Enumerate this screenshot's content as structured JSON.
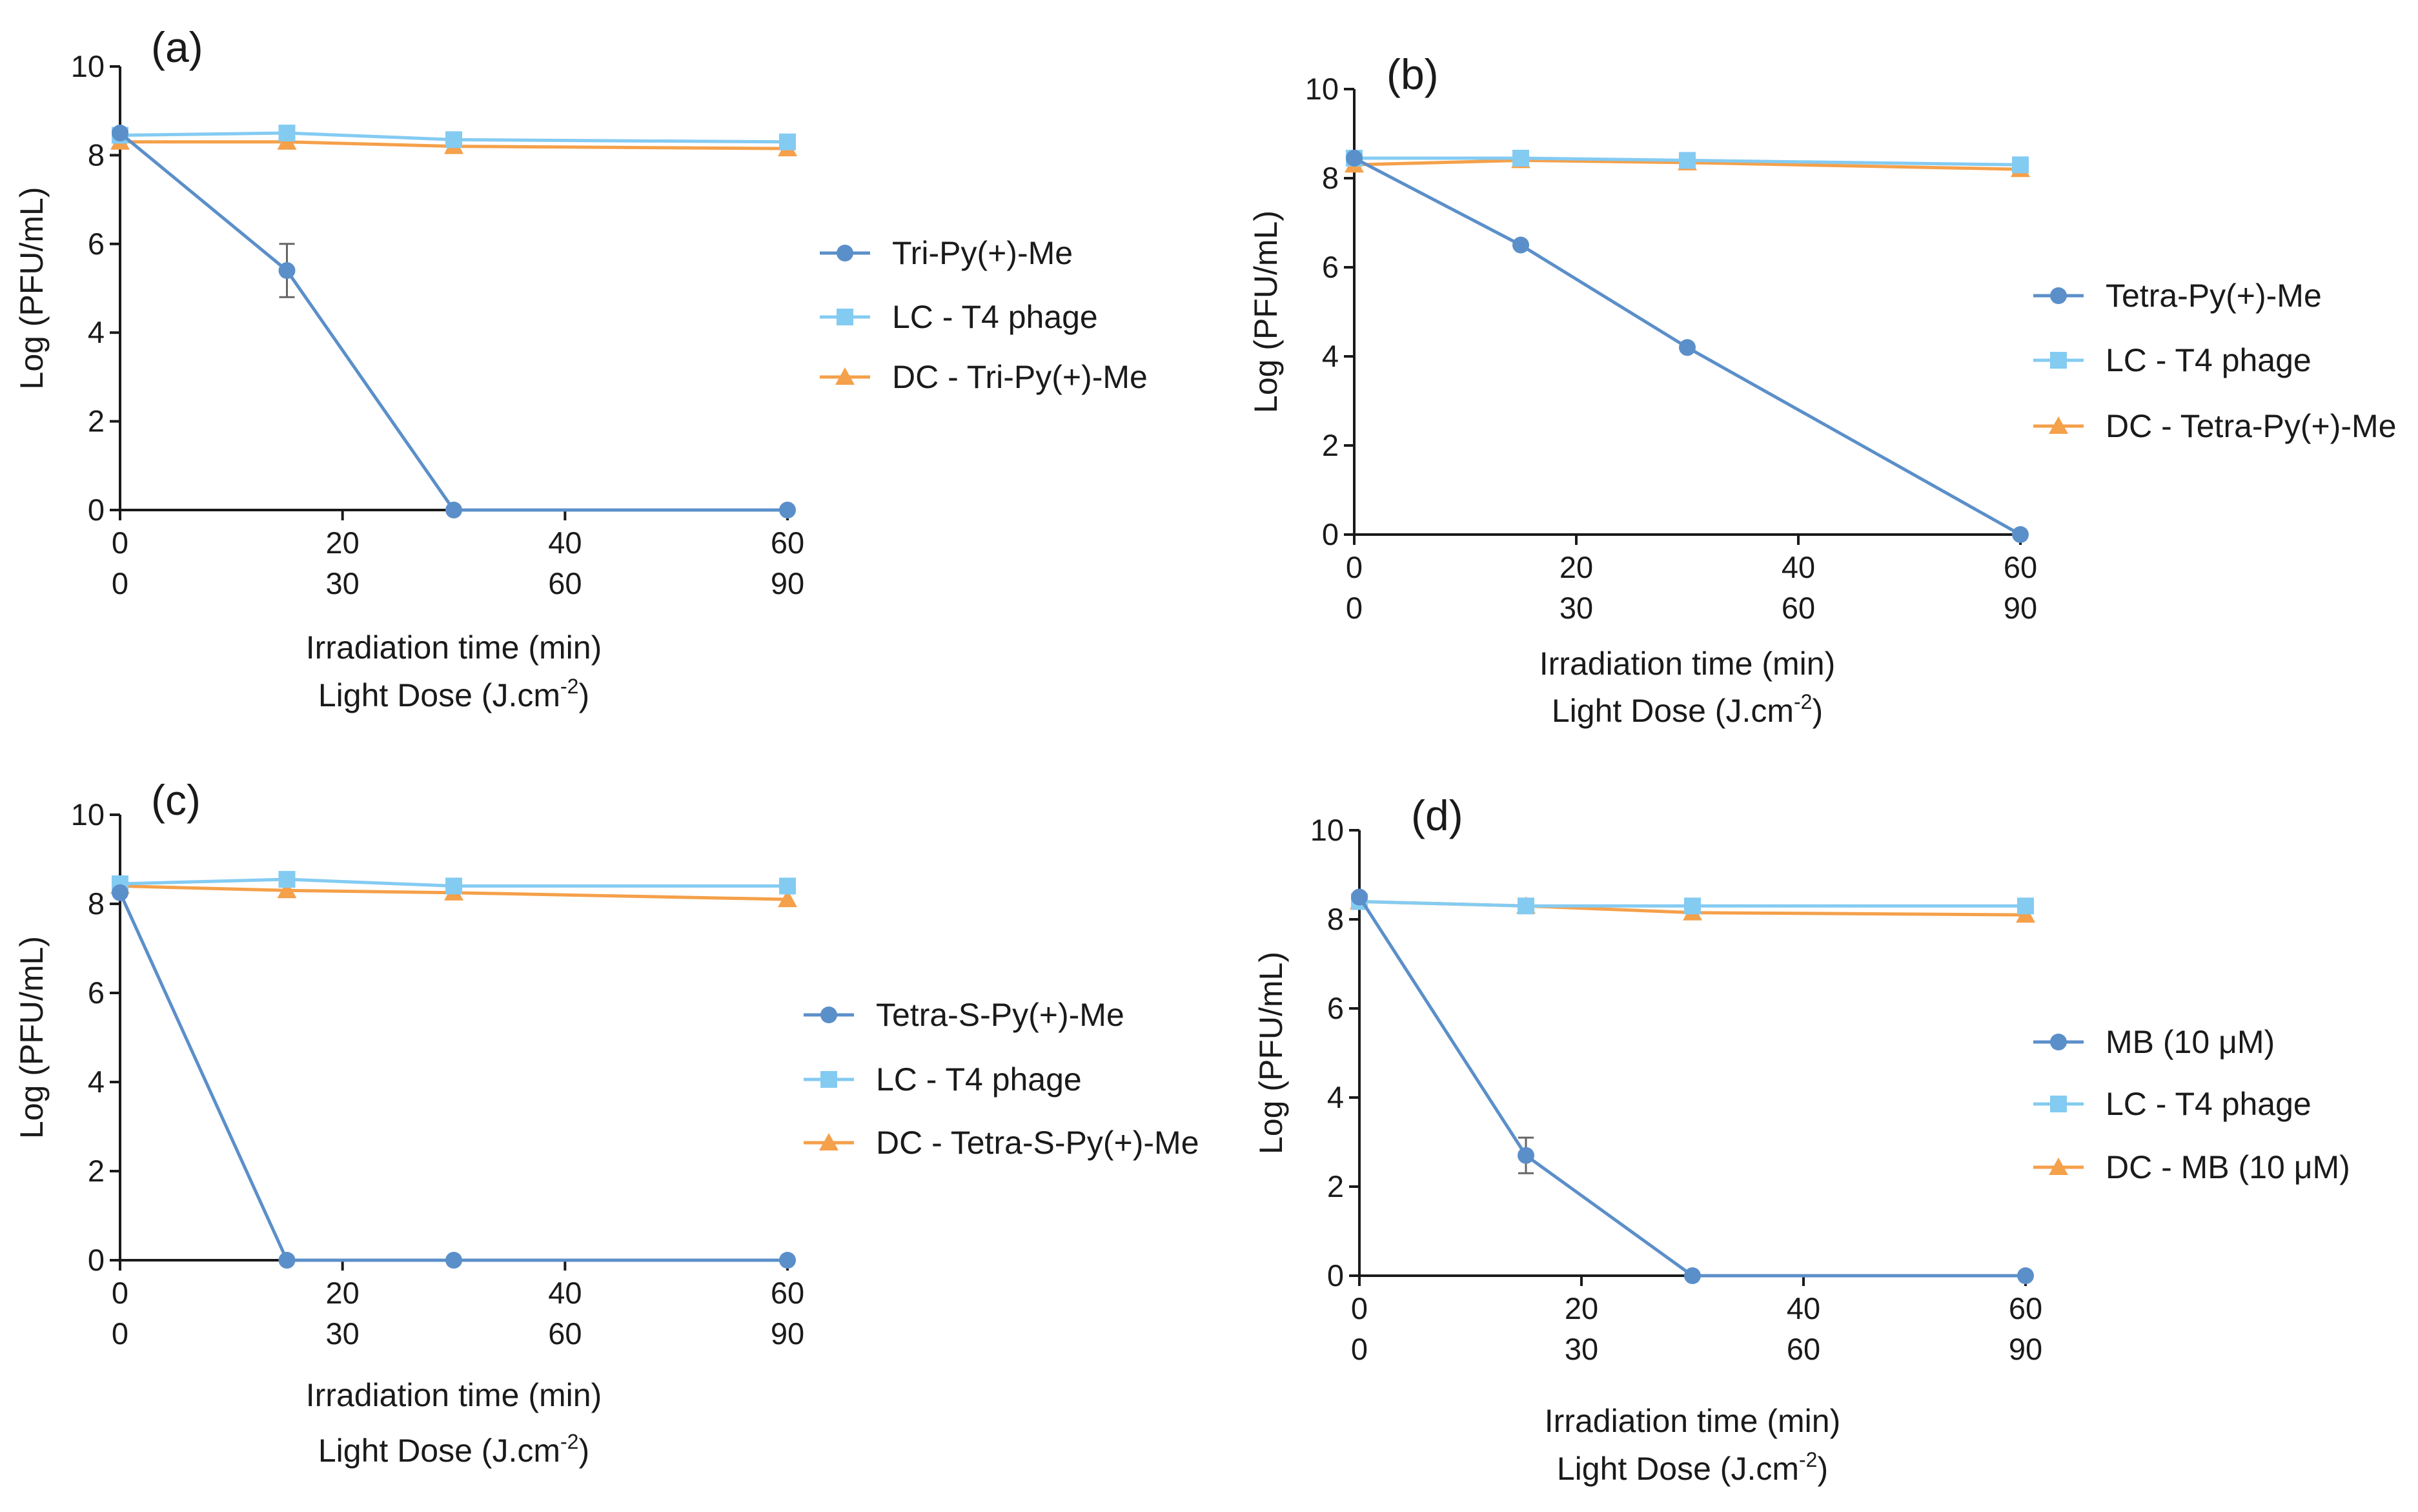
{
  "figure": {
    "colors": {
      "blue": "#5B8FC9",
      "light_blue": "#84CBF2",
      "orange": "#F5A04A",
      "axis": "#1a1a1a",
      "error": "#666666"
    }
  },
  "chart_data": [
    {
      "type": "line",
      "panel_label": "(a)",
      "xlabel": "Irradiation time (min)",
      "xlabel2_base": "Light Dose (J.cm",
      "xlabel2_sup": "-2",
      "xlabel2_end": ")",
      "ylabel": "Log (PFU/mL)",
      "xlim": [
        0,
        60
      ],
      "ylim": [
        0,
        10
      ],
      "xticks": [
        0,
        20,
        40,
        60
      ],
      "xticklabels": [
        "0",
        "20",
        "40",
        "60"
      ],
      "x2ticklabels": [
        "0",
        "30",
        "60",
        "90"
      ],
      "yticks": [
        0,
        2,
        4,
        6,
        8,
        10
      ],
      "yticklabels": [
        "0",
        "2",
        "4",
        "6",
        "8",
        "10"
      ],
      "series": [
        {
          "name": "Tri-Py(+)-Me",
          "marker": "circle",
          "color": "#5B8FC9",
          "x": [
            0,
            15,
            30,
            60
          ],
          "y": [
            8.5,
            5.4,
            0,
            0
          ],
          "err": [
            0,
            0.6,
            0,
            0
          ]
        },
        {
          "name": "LC - T4 phage",
          "marker": "square",
          "color": "#84CBF2",
          "x": [
            0,
            15,
            30,
            60
          ],
          "y": [
            8.45,
            8.5,
            8.35,
            8.3
          ],
          "err": [
            0,
            0,
            0,
            0
          ]
        },
        {
          "name": "DC - Tri-Py(+)-Me",
          "marker": "triangle",
          "color": "#F5A04A",
          "x": [
            0,
            15,
            30,
            60
          ],
          "y": [
            8.3,
            8.3,
            8.2,
            8.15
          ],
          "err": [
            0.15,
            0.15,
            0.1,
            0.15
          ]
        }
      ]
    },
    {
      "type": "line",
      "panel_label": "(b)",
      "xlabel": "Irradiation time (min)",
      "xlabel2_base": "Light Dose (J.cm",
      "xlabel2_sup": "-2",
      "xlabel2_end": ")",
      "ylabel": "Log (PFU/mL)",
      "xlim": [
        0,
        60
      ],
      "ylim": [
        0,
        10
      ],
      "xticks": [
        0,
        20,
        40,
        60
      ],
      "xticklabels": [
        "0",
        "20",
        "40",
        "60"
      ],
      "x2ticklabels": [
        "0",
        "30",
        "60",
        "90"
      ],
      "yticks": [
        0,
        2,
        4,
        6,
        8,
        10
      ],
      "yticklabels": [
        "0",
        "2",
        "4",
        "6",
        "8",
        "10"
      ],
      "series": [
        {
          "name": "Tetra-Py(+)-Me",
          "marker": "circle",
          "color": "#5B8FC9",
          "x": [
            0,
            15,
            30,
            60
          ],
          "y": [
            8.45,
            6.5,
            4.2,
            0
          ],
          "err": [
            0,
            0,
            0,
            0
          ]
        },
        {
          "name": "LC - T4 phage",
          "marker": "square",
          "color": "#84CBF2",
          "x": [
            0,
            15,
            30,
            60
          ],
          "y": [
            8.45,
            8.45,
            8.4,
            8.3
          ],
          "err": [
            0,
            0,
            0,
            0
          ]
        },
        {
          "name": "DC - Tetra-Py(+)-Me",
          "marker": "triangle",
          "color": "#F5A04A",
          "x": [
            0,
            15,
            30,
            60
          ],
          "y": [
            8.3,
            8.4,
            8.35,
            8.2
          ],
          "err": [
            0,
            0,
            0,
            0
          ]
        }
      ]
    },
    {
      "type": "line",
      "panel_label": "(c)",
      "xlabel": "Irradiation time (min)",
      "xlabel2_base": "Light Dose (J.cm",
      "xlabel2_sup": "-2",
      "xlabel2_end": ")",
      "ylabel": "Log (PFU/mL)",
      "xlim": [
        0,
        60
      ],
      "ylim": [
        0,
        10
      ],
      "xticks": [
        0,
        20,
        40,
        60
      ],
      "xticklabels": [
        "0",
        "20",
        "40",
        "60"
      ],
      "x2ticklabels": [
        "0",
        "30",
        "60",
        "90"
      ],
      "yticks": [
        0,
        2,
        4,
        6,
        8,
        10
      ],
      "yticklabels": [
        "0",
        "2",
        "4",
        "6",
        "8",
        "10"
      ],
      "series": [
        {
          "name": "Tetra-S-Py(+)-Me",
          "marker": "circle",
          "color": "#5B8FC9",
          "x": [
            0,
            15,
            30,
            60
          ],
          "y": [
            8.25,
            0,
            0,
            0
          ],
          "err": [
            0,
            0,
            0,
            0
          ]
        },
        {
          "name": "LC - T4 phage",
          "marker": "square",
          "color": "#84CBF2",
          "x": [
            0,
            15,
            30,
            60
          ],
          "y": [
            8.45,
            8.55,
            8.4,
            8.4
          ],
          "err": [
            0,
            0,
            0,
            0
          ]
        },
        {
          "name": "DC - Tetra-S-Py(+)-Me",
          "marker": "triangle",
          "color": "#F5A04A",
          "x": [
            0,
            15,
            30,
            60
          ],
          "y": [
            8.4,
            8.3,
            8.25,
            8.1
          ],
          "err": [
            0,
            0,
            0,
            0
          ]
        }
      ]
    },
    {
      "type": "line",
      "panel_label": "(d)",
      "xlabel": "Irradiation time (min)",
      "xlabel2_base": "Light Dose (J.cm",
      "xlabel2_sup": "-2",
      "xlabel2_end": ")",
      "ylabel": "Log (PFU/mL)",
      "xlim": [
        0,
        60
      ],
      "ylim": [
        0,
        10
      ],
      "xticks": [
        0,
        20,
        40,
        60
      ],
      "xticklabels": [
        "0",
        "20",
        "40",
        "60"
      ],
      "x2ticklabels": [
        "0",
        "30",
        "60",
        "90"
      ],
      "yticks": [
        0,
        2,
        4,
        6,
        8,
        10
      ],
      "yticklabels": [
        "0",
        "2",
        "4",
        "6",
        "8",
        "10"
      ],
      "series": [
        {
          "name": "MB (10 μM)",
          "marker": "circle",
          "color": "#5B8FC9",
          "x": [
            0,
            15,
            30,
            60
          ],
          "y": [
            8.5,
            2.7,
            0,
            0
          ],
          "err": [
            0,
            0.4,
            0,
            0
          ]
        },
        {
          "name": "LC - T4 phage",
          "marker": "square",
          "color": "#84CBF2",
          "x": [
            0,
            15,
            30,
            60
          ],
          "y": [
            8.4,
            8.3,
            8.3,
            8.3
          ],
          "err": [
            0,
            0,
            0,
            0
          ]
        },
        {
          "name": "DC - MB (10 μM)",
          "marker": "triangle",
          "color": "#F5A04A",
          "x": [
            0,
            15,
            30,
            60
          ],
          "y": [
            8.4,
            8.3,
            8.15,
            8.1
          ],
          "err": [
            0,
            0,
            0,
            0
          ]
        }
      ]
    }
  ]
}
